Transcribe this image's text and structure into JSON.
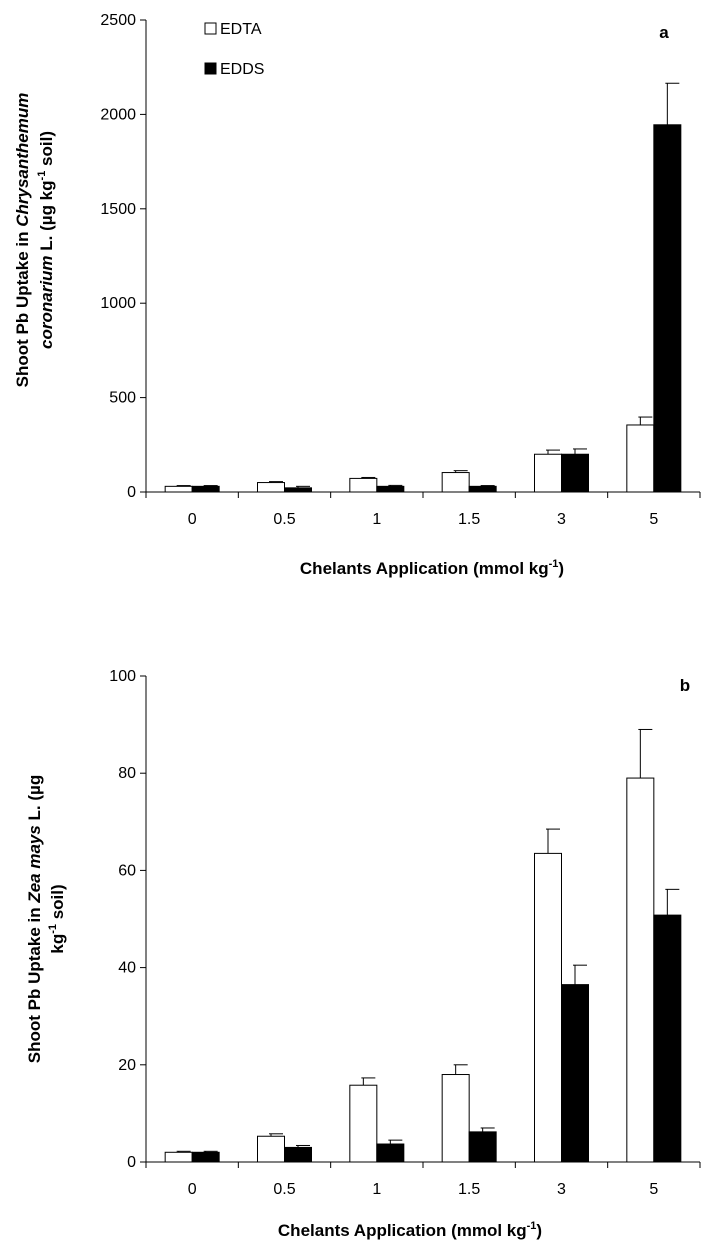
{
  "legend": [
    {
      "name": "EDTA",
      "color": "#ffffff"
    },
    {
      "name": "EDDS",
      "color": "#000000"
    }
  ],
  "chart_data": [
    {
      "type": "bar",
      "panel_label": "a",
      "categories": [
        "0",
        "0.5",
        "1",
        "1.5",
        "3",
        "5"
      ],
      "series": [
        {
          "name": "EDTA",
          "values": [
            30,
            50,
            72,
            103,
            200,
            355
          ],
          "errors": [
            4,
            5,
            5,
            10,
            22,
            42
          ]
        },
        {
          "name": "EDDS",
          "values": [
            30,
            22,
            30,
            30,
            200,
            1945
          ],
          "errors": [
            4,
            8,
            5,
            4,
            28,
            220
          ]
        }
      ],
      "ylim": [
        0,
        2500
      ],
      "yticks": [
        "0",
        "500",
        "1000",
        "1500",
        "2000",
        "2500"
      ],
      "xlabel": "Chelants Application (mmol kg-1)",
      "ylabel_line1": "Shoot Pb Uptake in Chrysanthemum",
      "ylabel_line2": "coronarium L. (µg kg-1 soil)",
      "legend_position": "top-left"
    },
    {
      "type": "bar",
      "panel_label": "b",
      "categories": [
        "0",
        "0.5",
        "1",
        "1.5",
        "3",
        "5"
      ],
      "series": [
        {
          "name": "EDTA",
          "values": [
            2,
            5.3,
            15.8,
            18,
            63.5,
            79
          ],
          "errors": [
            0.2,
            0.5,
            1.5,
            2,
            5,
            10
          ]
        },
        {
          "name": "EDDS",
          "values": [
            2,
            3,
            3.7,
            6.2,
            36.5,
            50.8
          ],
          "errors": [
            0.2,
            0.4,
            0.8,
            0.8,
            4,
            5.3
          ]
        }
      ],
      "ylim": [
        0,
        100
      ],
      "yticks": [
        "0",
        "20",
        "40",
        "60",
        "80",
        "100"
      ],
      "xlabel": "Chelants Application (mmol kg-1)",
      "ylabel_line1": "Shoot Pb Uptake in Zea mays L. (µg",
      "ylabel_line2": "kg-1 soil)"
    }
  ]
}
